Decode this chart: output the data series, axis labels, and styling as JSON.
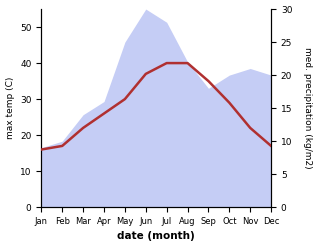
{
  "months": [
    "Jan",
    "Feb",
    "Mar",
    "Apr",
    "May",
    "Jun",
    "Jul",
    "Aug",
    "Sep",
    "Oct",
    "Nov",
    "Dec"
  ],
  "temp": [
    16,
    17,
    22,
    26,
    30,
    37,
    40,
    40,
    35,
    29,
    22,
    17
  ],
  "precip": [
    9,
    10,
    14,
    16,
    25,
    30,
    28,
    22,
    18,
    20,
    21,
    20
  ],
  "temp_color": "#b03030",
  "precip_fill_color": "#c5cdf5",
  "temp_ylim": [
    0,
    55
  ],
  "precip_ylim": [
    0,
    30
  ],
  "temp_yticks": [
    0,
    10,
    20,
    30,
    40,
    50
  ],
  "precip_yticks": [
    0,
    5,
    10,
    15,
    20,
    25,
    30
  ],
  "ylabel_left": "max temp (C)",
  "ylabel_right": "med. precipitation (kg/m2)",
  "xlabel": "date (month)",
  "bg_color": "#ffffff"
}
